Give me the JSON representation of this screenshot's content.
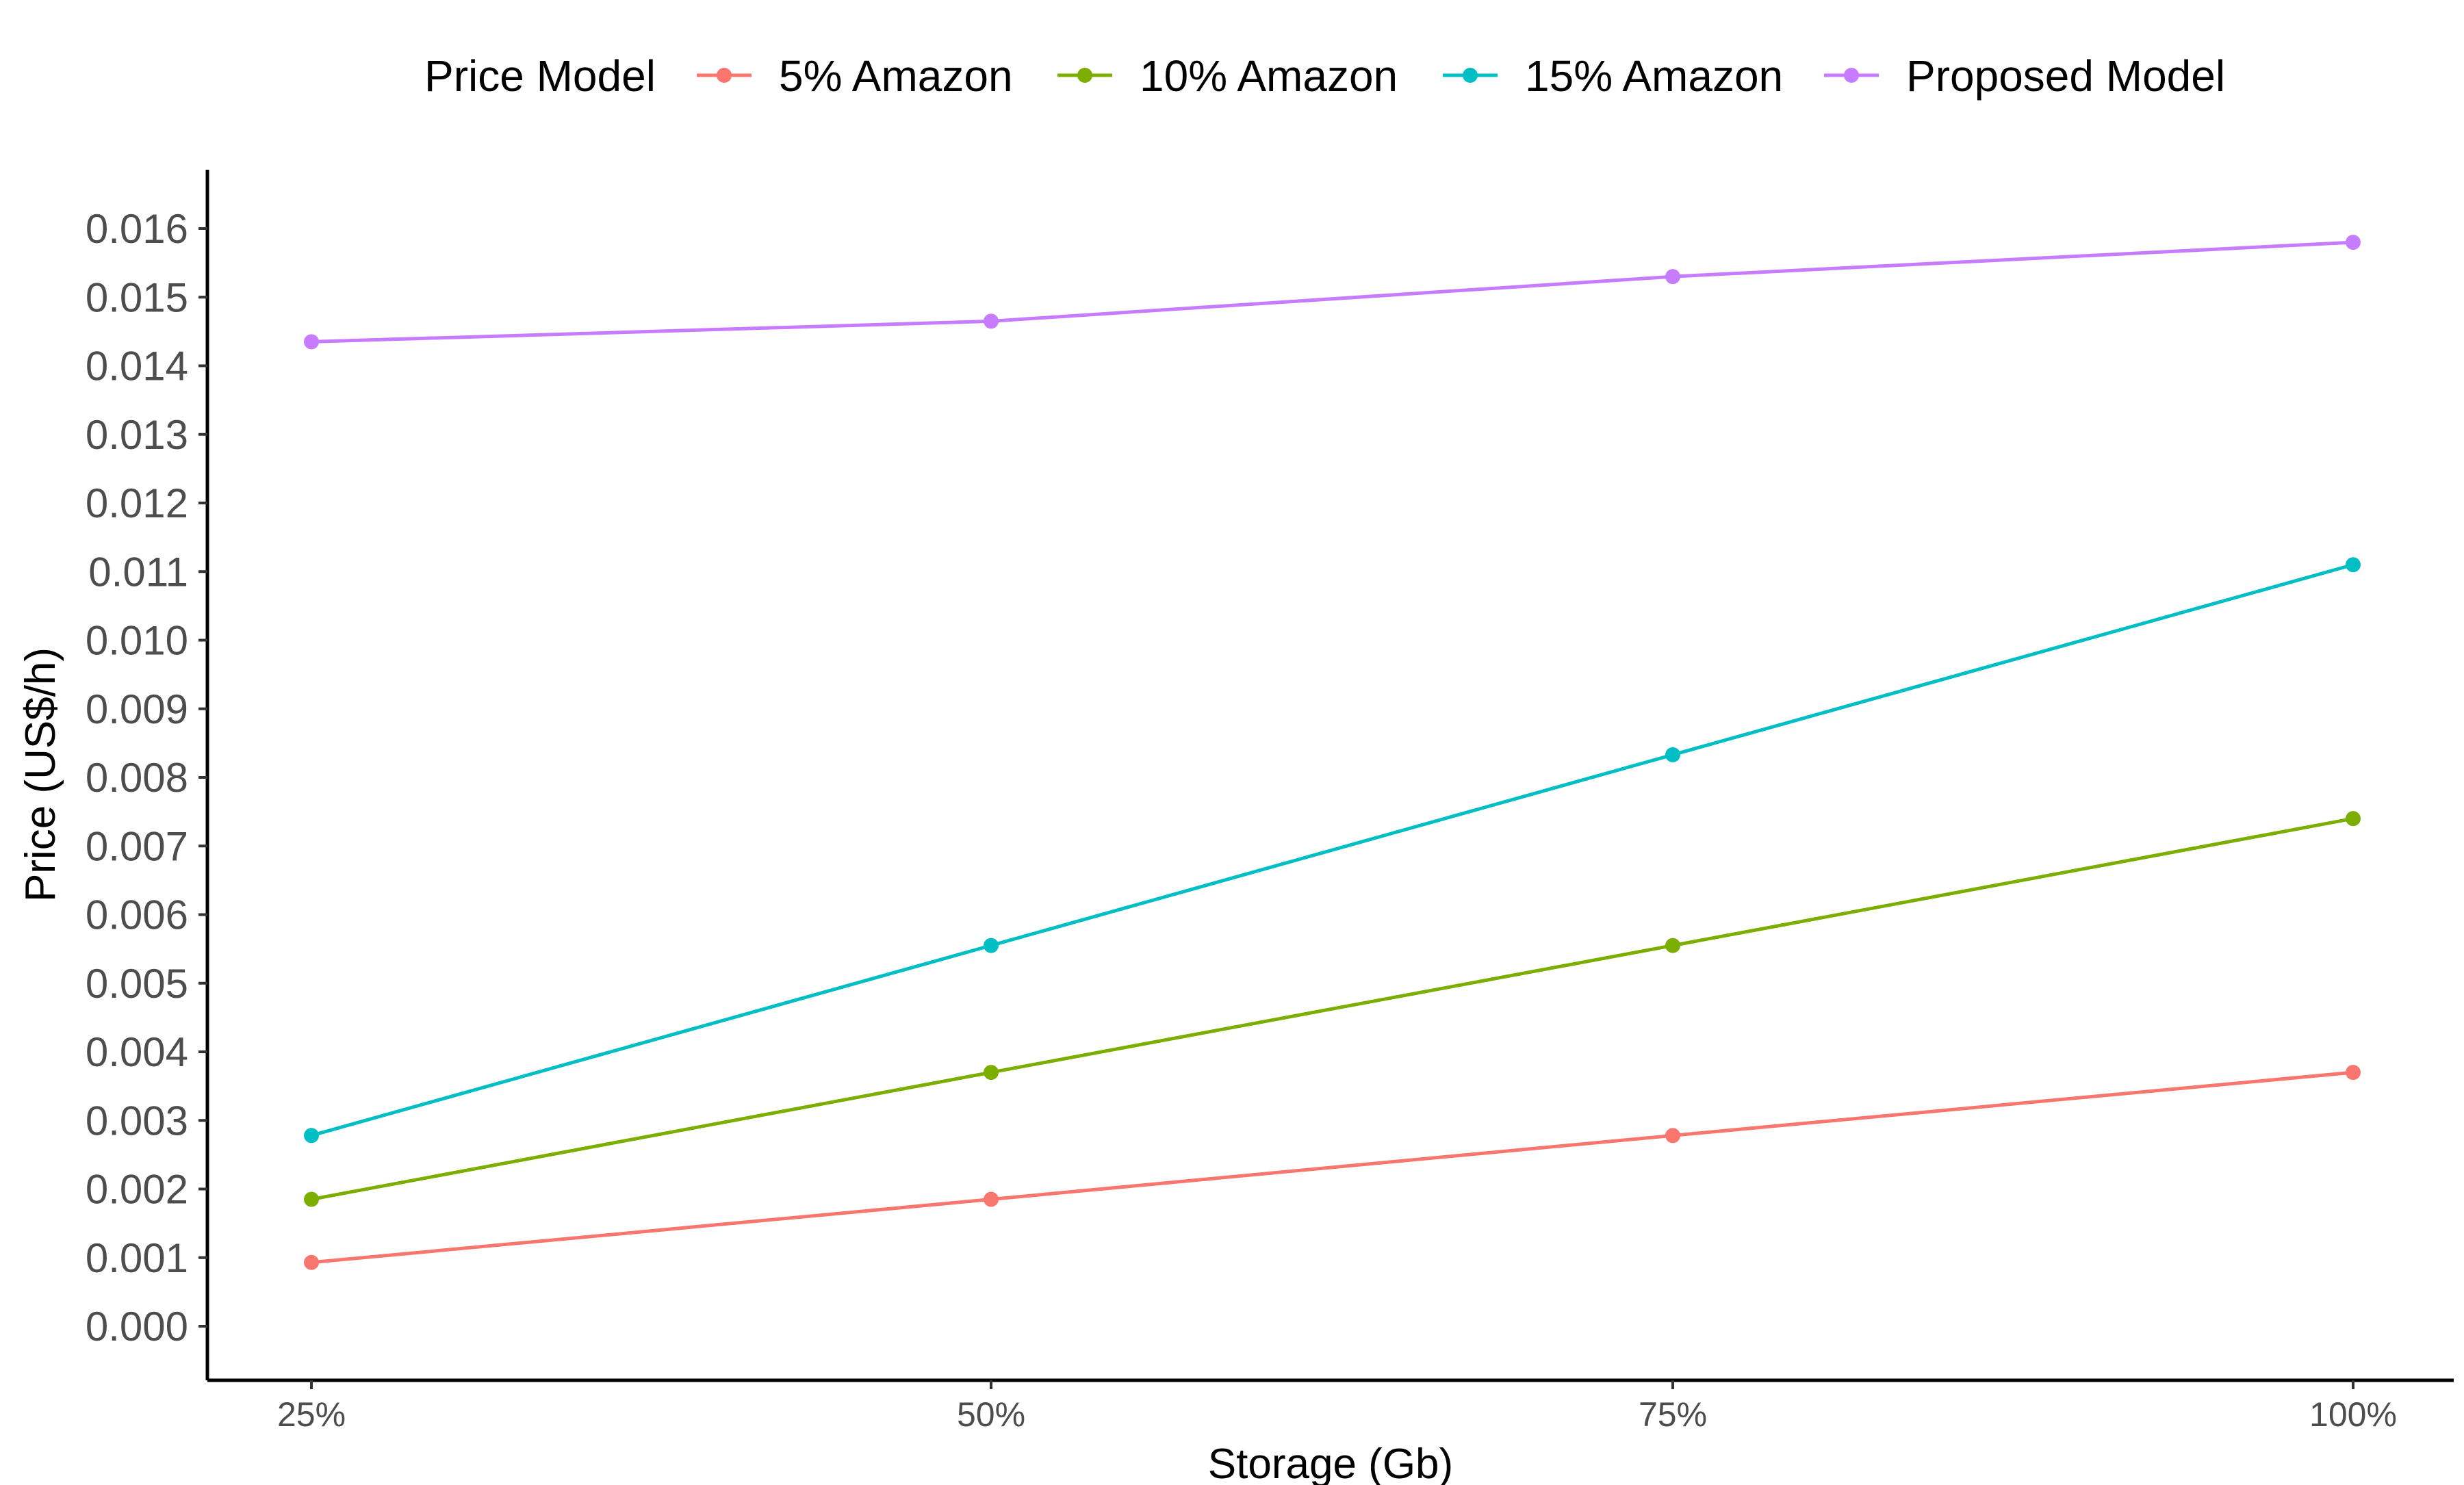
{
  "chart_data": {
    "type": "line",
    "xlabel": "Storage (Gb)",
    "ylabel": "Price (US$/h)",
    "categories": [
      "25%",
      "50%",
      "75%",
      "100%"
    ],
    "ylim": [
      -0.00077,
      0.0167
    ],
    "yticks": [
      "0.000",
      "0.001",
      "0.002",
      "0.003",
      "0.004",
      "0.005",
      "0.006",
      "0.007",
      "0.008",
      "0.009",
      "0.010",
      "0.011",
      "0.012",
      "0.013",
      "0.014",
      "0.015",
      "0.016"
    ],
    "legend": {
      "title": "Price Model",
      "position": "top"
    },
    "grid": false,
    "series": [
      {
        "name": "5% Amazon",
        "color": "#F8766D",
        "values": [
          0.00093,
          0.00185,
          0.00278,
          0.0037
        ]
      },
      {
        "name": "10% Amazon",
        "color": "#7CAE00",
        "values": [
          0.00185,
          0.0037,
          0.00555,
          0.0074
        ]
      },
      {
        "name": "15% Amazon",
        "color": "#00BFC4",
        "values": [
          0.00278,
          0.00555,
          0.00833,
          0.0111
        ]
      },
      {
        "name": "Proposed Model",
        "color": "#C77CFF",
        "values": [
          0.01435,
          0.01465,
          0.0153,
          0.0158
        ]
      }
    ]
  }
}
